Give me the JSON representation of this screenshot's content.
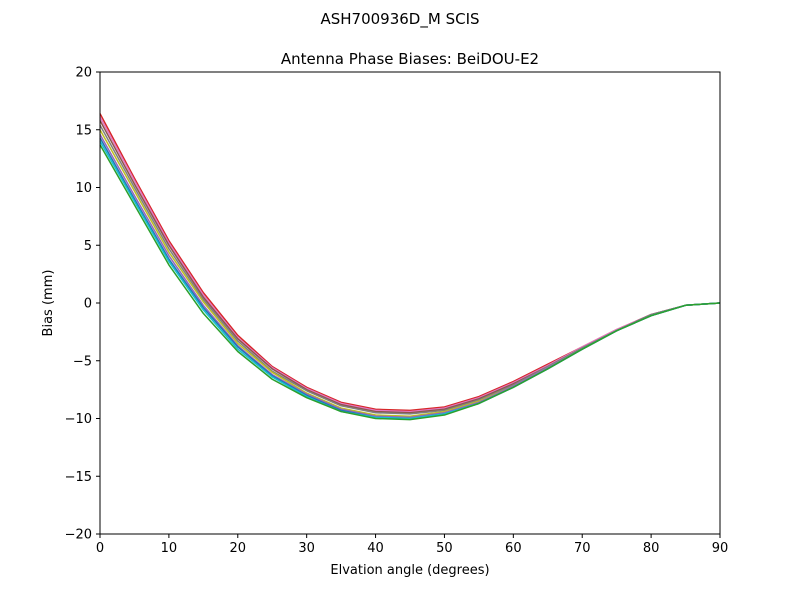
{
  "suptitle": "ASH700936D_M    SCIS",
  "chart_data": {
    "type": "line",
    "title": "Antenna Phase Biases: BeiDOU-E2",
    "xlabel": "Elvation angle (degrees)",
    "ylabel": "Bias (mm)",
    "xlim": [
      0,
      90
    ],
    "ylim": [
      -20,
      20
    ],
    "xticks": [
      0,
      10,
      20,
      30,
      40,
      50,
      60,
      70,
      80,
      90
    ],
    "yticks": [
      -20,
      -15,
      -10,
      -5,
      0,
      5,
      10,
      15,
      20
    ],
    "xtick_labels": [
      "0",
      "10",
      "20",
      "30",
      "40",
      "50",
      "60",
      "70",
      "80",
      "90"
    ],
    "ytick_labels": [
      "−20",
      "−15",
      "−10",
      "−5",
      "0",
      "5",
      "10",
      "15",
      "20"
    ],
    "grid": false,
    "legend": "none",
    "x": [
      0,
      5,
      10,
      15,
      20,
      25,
      30,
      35,
      40,
      45,
      50,
      55,
      60,
      65,
      70,
      75,
      80,
      85,
      90
    ],
    "series": [
      {
        "color": "#d62728",
        "values": [
          16.4,
          10.8,
          5.4,
          0.9,
          -2.8,
          -5.5,
          -7.3,
          -8.6,
          -9.2,
          -9.3,
          -9.0,
          -8.1,
          -6.8,
          -5.3,
          -3.8,
          -2.3,
          -1.0,
          -0.2,
          0.0
        ]
      },
      {
        "color": "#e377c2",
        "values": [
          16.1,
          10.6,
          5.2,
          0.7,
          -3.0,
          -5.6,
          -7.4,
          -8.7,
          -9.3,
          -9.4,
          -9.1,
          -8.2,
          -6.9,
          -5.4,
          -3.8,
          -2.3,
          -1.0,
          -0.2,
          0.0
        ]
      },
      {
        "color": "#8c564b",
        "values": [
          15.8,
          10.3,
          5.0,
          0.5,
          -3.1,
          -5.7,
          -7.5,
          -8.8,
          -9.4,
          -9.5,
          -9.2,
          -8.3,
          -7.0,
          -5.5,
          -3.9,
          -2.4,
          -1.0,
          -0.2,
          0.0
        ]
      },
      {
        "color": "#7f7f7f",
        "values": [
          15.4,
          10.0,
          4.7,
          0.3,
          -3.3,
          -5.9,
          -7.6,
          -8.9,
          -9.5,
          -9.6,
          -9.3,
          -8.4,
          -7.1,
          -5.5,
          -3.9,
          -2.4,
          -1.0,
          -0.2,
          0.0
        ]
      },
      {
        "color": "#bcbd22",
        "values": [
          15.0,
          9.7,
          4.4,
          0.1,
          -3.5,
          -6.0,
          -7.8,
          -9.1,
          -9.7,
          -9.8,
          -9.4,
          -8.5,
          -7.2,
          -5.6,
          -4.0,
          -2.4,
          -1.1,
          -0.2,
          0.0
        ]
      },
      {
        "color": "#9467bd",
        "values": [
          14.6,
          9.3,
          4.1,
          -0.2,
          -3.7,
          -6.2,
          -7.9,
          -9.2,
          -9.8,
          -9.9,
          -9.5,
          -8.6,
          -7.2,
          -5.6,
          -4.0,
          -2.4,
          -1.1,
          -0.2,
          0.0
        ]
      },
      {
        "color": "#1f77b4",
        "values": [
          14.3,
          9.0,
          3.8,
          -0.4,
          -3.8,
          -6.3,
          -8.0,
          -9.3,
          -9.9,
          -10.0,
          -9.6,
          -8.7,
          -7.3,
          -5.7,
          -4.0,
          -2.4,
          -1.1,
          -0.2,
          0.0
        ]
      },
      {
        "color": "#17becf",
        "values": [
          14.0,
          8.8,
          3.6,
          -0.6,
          -4.0,
          -6.4,
          -8.1,
          -9.4,
          -9.9,
          -10.0,
          -9.6,
          -8.7,
          -7.3,
          -5.7,
          -4.0,
          -2.4,
          -1.1,
          -0.2,
          0.0
        ]
      },
      {
        "color": "#2ca02c",
        "values": [
          13.7,
          8.5,
          3.3,
          -0.9,
          -4.2,
          -6.6,
          -8.2,
          -9.4,
          -10.0,
          -10.1,
          -9.7,
          -8.7,
          -7.3,
          -5.7,
          -4.0,
          -2.4,
          -1.1,
          -0.2,
          0.0
        ]
      }
    ]
  }
}
